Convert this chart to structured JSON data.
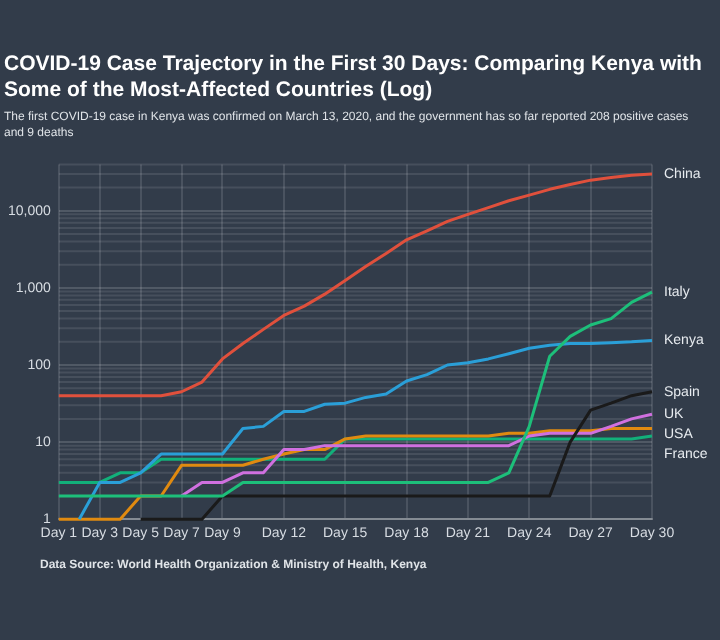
{
  "chart_data": {
    "type": "line",
    "title": "COVID-19 Case Trajectory in the First 30 Days: Comparing Kenya with Some of the Most-Affected Countries (Log)",
    "subtitle": "The first COVID-19 case in Kenya was confirmed on March 13, 2020, and the government has so far reported 208 positive cases and 9 deaths",
    "categories": [
      "Day 1",
      null,
      "Day 3",
      null,
      "Day 5",
      null,
      "Day 7",
      null,
      "Day 9",
      null,
      null,
      "Day 12",
      null,
      null,
      "Day 15",
      null,
      null,
      "Day 18",
      null,
      null,
      "Day 21",
      null,
      null,
      "Day 24",
      null,
      null,
      "Day 27",
      null,
      null,
      "Day 30"
    ],
    "series": [
      {
        "name": "China",
        "color": "#e0503c",
        "values": [
          40,
          40,
          40,
          40,
          40,
          40,
          45,
          60,
          120,
          190,
          290,
          440,
          580,
          830,
          1250,
          1900,
          2800,
          4200,
          5500,
          7300,
          9000,
          11000,
          13500,
          16000,
          19000,
          22000,
          25000,
          27000,
          29000,
          30000
        ]
      },
      {
        "name": "Italy",
        "color": "#1dbf7a",
        "values": [
          2,
          2,
          2,
          2,
          2,
          2,
          2,
          2,
          2,
          3,
          3,
          3,
          3,
          3,
          3,
          3,
          3,
          3,
          3,
          3,
          3,
          3,
          4,
          16,
          130,
          235,
          330,
          400,
          650,
          880
        ]
      },
      {
        "name": "Kenya",
        "color": "#2a9fd8",
        "values": [
          null,
          1,
          3,
          3,
          4,
          7,
          7,
          7,
          7,
          15,
          16,
          25,
          25,
          31,
          32,
          38,
          42,
          62,
          75,
          100,
          107,
          120,
          140,
          165,
          180,
          190,
          190,
          195,
          200,
          208
        ]
      },
      {
        "name": "Spain",
        "color": "#1a1a1a",
        "values": [
          null,
          null,
          null,
          null,
          1,
          1,
          1,
          1,
          2,
          2,
          2,
          2,
          2,
          2,
          2,
          2,
          2,
          2,
          2,
          2,
          2,
          2,
          2,
          2,
          2,
          10,
          26,
          32,
          40,
          45
        ]
      },
      {
        "name": "UK",
        "color": "#d070e0",
        "values": [
          null,
          null,
          null,
          null,
          null,
          null,
          2,
          3,
          3,
          4,
          4,
          8,
          8,
          9,
          9,
          9,
          9,
          9,
          9,
          9,
          9,
          9,
          9,
          12,
          13,
          13,
          13,
          16,
          20,
          23
        ]
      },
      {
        "name": "USA",
        "color": "#e08a10",
        "values": [
          1,
          1,
          1,
          1,
          2,
          2,
          5,
          5,
          5,
          5,
          6,
          7,
          8,
          8,
          11,
          12,
          12,
          12,
          12,
          12,
          12,
          12,
          13,
          13,
          14,
          14,
          14,
          15,
          15,
          15
        ]
      },
      {
        "name": "France",
        "color": "#12b07a",
        "values": [
          3,
          3,
          3,
          4,
          4,
          6,
          6,
          6,
          6,
          6,
          6,
          6,
          6,
          6,
          11,
          11,
          11,
          11,
          11,
          11,
          11,
          11,
          11,
          11,
          11,
          11,
          11,
          11,
          11,
          12
        ]
      }
    ],
    "log": "y",
    "ylim": [
      1,
      40000
    ],
    "yticks": [
      1,
      10,
      100,
      {
        "value": 1000,
        "label": "1,000"
      },
      {
        "value": 10000,
        "label": "10,000"
      }
    ],
    "grid": true,
    "legend": false,
    "annotations": [
      "Data Source: World Health Organization & Ministry of Health, Kenya"
    ]
  }
}
